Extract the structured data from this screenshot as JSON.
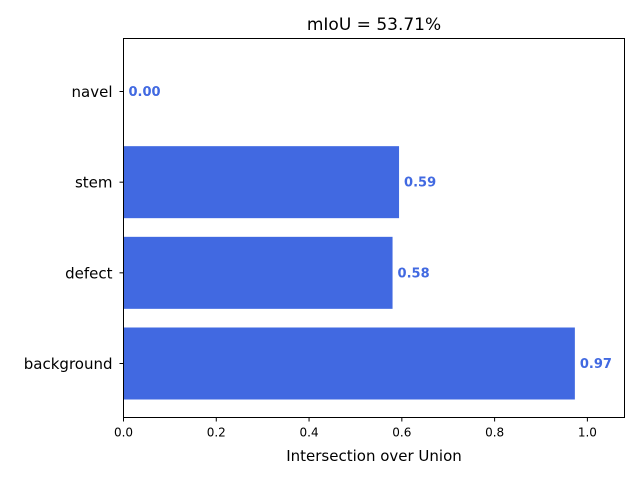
{
  "chart_data": {
    "type": "bar",
    "orientation": "horizontal",
    "title": "mIoU = 53.71%",
    "xlabel": "Intersection over Union",
    "ylabel": "",
    "categories": [
      "navel",
      "stem",
      "defect",
      "background"
    ],
    "values": [
      0.0,
      0.594,
      0.58,
      0.973
    ],
    "value_labels": [
      "0.00",
      "0.59",
      "0.58",
      "0.97"
    ],
    "xlim": [
      0,
      1.08
    ],
    "xticks": [
      "0.0",
      "0.2",
      "0.4",
      "0.6",
      "0.8",
      "1.0"
    ],
    "xtick_values": [
      0,
      0.2,
      0.4,
      0.6,
      0.8,
      1.0
    ],
    "grid": false,
    "bar_color": "#4169E1",
    "label_color": "#4169E1"
  }
}
